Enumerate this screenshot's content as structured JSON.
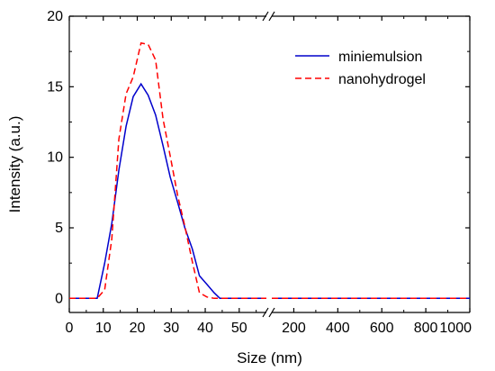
{
  "chart_data": {
    "type": "line",
    "xlabel": "Size (nm)",
    "ylabel": "Intensity (a.u.)",
    "ylim": [
      -1,
      20
    ],
    "yticks": [
      "0",
      "5",
      "10",
      "15",
      "20"
    ],
    "broken_axis": true,
    "segments": [
      {
        "xlim": [
          0,
          58
        ],
        "xticks": [
          "0",
          "10",
          "20",
          "30",
          "40",
          "50"
        ]
      },
      {
        "xlim": [
          100,
          1000
        ],
        "xticks": [
          "200",
          "400",
          "600",
          "800",
          "1000"
        ]
      }
    ],
    "legend_position": "top-right",
    "grid": false,
    "series": [
      {
        "name": "miniemulsion",
        "color": "#0000cc",
        "dash": "solid",
        "points": [
          [
            0,
            0
          ],
          [
            8.2,
            0
          ],
          [
            10.4,
            2.5
          ],
          [
            12.5,
            5.3
          ],
          [
            14.6,
            9.1
          ],
          [
            16.7,
            12.2
          ],
          [
            18.8,
            14.3
          ],
          [
            21.1,
            15.2
          ],
          [
            23.2,
            14.4
          ],
          [
            25.4,
            13.0
          ],
          [
            27.6,
            10.8
          ],
          [
            29.7,
            8.6
          ],
          [
            31.9,
            6.8
          ],
          [
            34,
            5.0
          ],
          [
            36.2,
            3.5
          ],
          [
            38.3,
            1.6
          ],
          [
            40.5,
            1.0
          ],
          [
            42.6,
            0.4
          ],
          [
            44.3,
            0
          ],
          [
            58,
            0
          ],
          [
            100,
            0
          ],
          [
            1000,
            0
          ]
        ]
      },
      {
        "name": "nanohydrogel",
        "color": "#ff0000",
        "dash": "dashed",
        "points": [
          [
            0,
            0
          ],
          [
            8.2,
            0
          ],
          [
            10.4,
            0.6
          ],
          [
            12.5,
            4.2
          ],
          [
            14.6,
            11.3
          ],
          [
            16.7,
            14.5
          ],
          [
            18.8,
            15.7
          ],
          [
            21.1,
            18.1
          ],
          [
            23.2,
            18.0
          ],
          [
            25.4,
            16.9
          ],
          [
            27.6,
            12.7
          ],
          [
            29.7,
            10.1
          ],
          [
            31.9,
            7.3
          ],
          [
            34,
            5.1
          ],
          [
            36.2,
            2.6
          ],
          [
            38.3,
            0.4
          ],
          [
            40.5,
            0.1
          ],
          [
            42.6,
            0
          ],
          [
            58,
            0
          ],
          [
            100,
            0
          ],
          [
            1000,
            0
          ]
        ]
      }
    ]
  }
}
